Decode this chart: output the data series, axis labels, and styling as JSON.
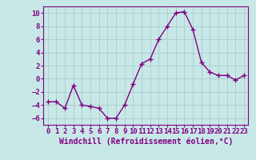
{
  "x": [
    0,
    1,
    2,
    3,
    4,
    5,
    6,
    7,
    8,
    9,
    10,
    11,
    12,
    13,
    14,
    15,
    16,
    17,
    18,
    19,
    20,
    21,
    22,
    23
  ],
  "y": [
    -3.5,
    -3.5,
    -4.5,
    -1.0,
    -4.0,
    -4.2,
    -4.5,
    -6.0,
    -6.0,
    -4.0,
    -0.8,
    2.3,
    3.0,
    6.0,
    8.0,
    10.0,
    10.2,
    7.5,
    2.5,
    1.0,
    0.5,
    0.5,
    -0.2,
    0.5
  ],
  "line_color": "#800080",
  "marker": "+",
  "bg_color": "#c8e8e8",
  "grid_color": "#a8cccc",
  "xlabel": "Windchill (Refroidissement éolien,°C)",
  "xlim": [
    -0.5,
    23.5
  ],
  "ylim": [
    -7,
    11
  ],
  "yticks": [
    -6,
    -4,
    -2,
    0,
    2,
    4,
    6,
    8,
    10
  ],
  "xticks": [
    0,
    1,
    2,
    3,
    4,
    5,
    6,
    7,
    8,
    9,
    10,
    11,
    12,
    13,
    14,
    15,
    16,
    17,
    18,
    19,
    20,
    21,
    22,
    23
  ],
  "xlabel_fontsize": 7.0,
  "tick_fontsize": 6.5,
  "line_width": 1.0,
  "marker_size": 4
}
